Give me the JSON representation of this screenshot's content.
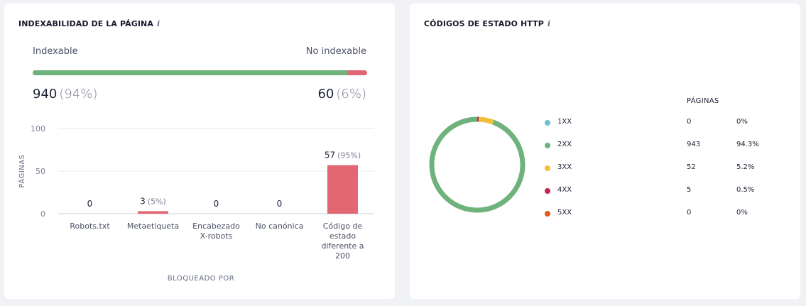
{
  "indexability": {
    "title": "INDEXABILIDAD DE LA PÁGINA",
    "info": "i",
    "indexable_label": "Indexable",
    "non_indexable_label": "No indexable",
    "indexable_count": "940",
    "indexable_pct": "(94%)",
    "non_indexable_count": "60",
    "non_indexable_pct": "(6%)",
    "indexable_fraction": 0.94,
    "colors": {
      "indexable": "#6fb27c",
      "non_indexable": "#e26773"
    }
  },
  "http_codes": {
    "title": "CÓDIGOS DE ESTADO HTTP",
    "info": "i",
    "table_header": "PÁGINAS",
    "rows": [
      {
        "name": "1XX",
        "count": "0",
        "pct": "0%",
        "value": 0,
        "color": "#6cc0d2"
      },
      {
        "name": "2XX",
        "count": "943",
        "pct": "94.3%",
        "value": 943,
        "color": "#6fb27c"
      },
      {
        "name": "3XX",
        "count": "52",
        "pct": "5.2%",
        "value": 52,
        "color": "#f2be3a"
      },
      {
        "name": "4XX",
        "count": "5",
        "pct": "0.5%",
        "value": 5,
        "color": "#c6224e"
      },
      {
        "name": "5XX",
        "count": "0",
        "pct": "0%",
        "value": 0,
        "color": "#e05a1e"
      }
    ]
  },
  "chart_data": [
    {
      "type": "bar",
      "ylabel": "PÁGINAS",
      "xlabel": "BLOQUEADO POR",
      "ylim": [
        0,
        100
      ],
      "yticks": [
        "0",
        "50",
        "100"
      ],
      "categories": [
        [
          "Robots.txt"
        ],
        [
          "Metaetiqueta"
        ],
        [
          "Encabezado",
          "X-robots"
        ],
        [
          "No canónica"
        ],
        [
          "Código de",
          "estado",
          "diferente a",
          "200"
        ]
      ],
      "values": [
        0,
        3,
        0,
        0,
        57
      ],
      "labels": [
        "0",
        "3",
        "0",
        "0",
        "57"
      ],
      "label_pcts": [
        "",
        "(5%)",
        "",
        "",
        "(95%)"
      ],
      "bar_color": "#e26773",
      "grid": true
    },
    {
      "type": "pie",
      "categories": [
        "1XX",
        "2XX",
        "3XX",
        "4XX",
        "5XX"
      ],
      "values": [
        0,
        943,
        52,
        5,
        0
      ]
    }
  ]
}
